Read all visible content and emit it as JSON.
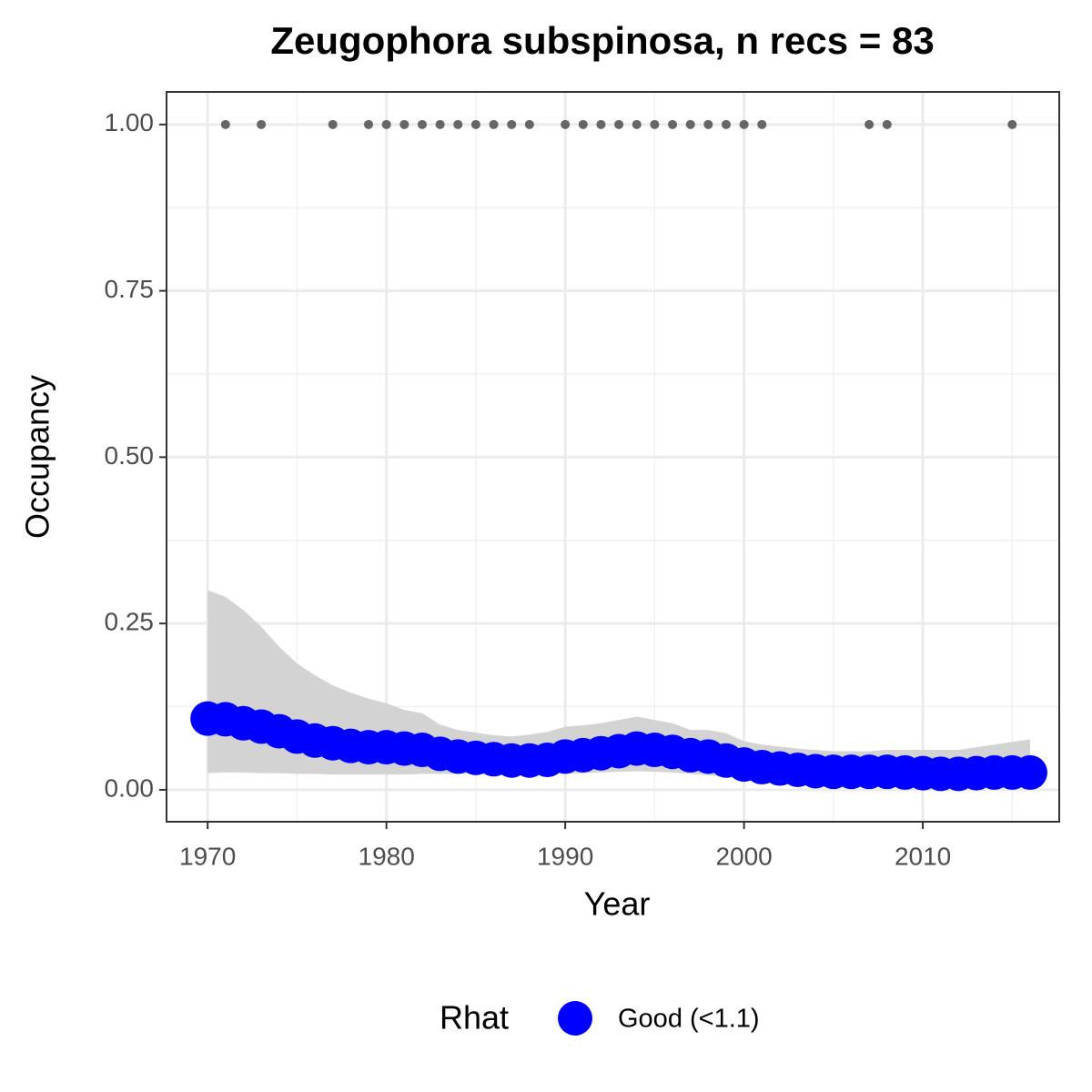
{
  "chart_data": {
    "type": "line",
    "title": "Zeugophora subspinosa, n recs = 83",
    "x_label": "Year",
    "y_label": "Occupancy",
    "legend_title": "Rhat",
    "x": [
      1970,
      1971,
      1972,
      1973,
      1974,
      1975,
      1976,
      1977,
      1978,
      1979,
      1980,
      1981,
      1982,
      1983,
      1984,
      1985,
      1986,
      1987,
      1988,
      1989,
      1990,
      1991,
      1992,
      1993,
      1994,
      1995,
      1996,
      1997,
      1998,
      1999,
      2000,
      2001,
      2002,
      2003,
      2004,
      2005,
      2006,
      2007,
      2008,
      2009,
      2010,
      2011,
      2012,
      2013,
      2014,
      2015,
      2016
    ],
    "series": [
      {
        "name": "Good (<1.1)",
        "color": "#0000ff",
        "ribbon_color": "#d3d3d3",
        "values": [
          0.107,
          0.106,
          0.1,
          0.095,
          0.088,
          0.08,
          0.074,
          0.07,
          0.066,
          0.064,
          0.064,
          0.062,
          0.06,
          0.054,
          0.05,
          0.048,
          0.046,
          0.044,
          0.044,
          0.045,
          0.05,
          0.052,
          0.055,
          0.058,
          0.062,
          0.06,
          0.057,
          0.052,
          0.05,
          0.044,
          0.038,
          0.034,
          0.032,
          0.03,
          0.028,
          0.027,
          0.027,
          0.027,
          0.027,
          0.026,
          0.025,
          0.024,
          0.024,
          0.025,
          0.026,
          0.026,
          0.026
        ],
        "upper": [
          0.3,
          0.29,
          0.27,
          0.245,
          0.215,
          0.19,
          0.172,
          0.157,
          0.146,
          0.137,
          0.13,
          0.12,
          0.115,
          0.098,
          0.09,
          0.086,
          0.082,
          0.08,
          0.083,
          0.087,
          0.095,
          0.097,
          0.1,
          0.105,
          0.11,
          0.105,
          0.1,
          0.09,
          0.09,
          0.085,
          0.073,
          0.068,
          0.065,
          0.062,
          0.06,
          0.058,
          0.058,
          0.058,
          0.06,
          0.06,
          0.06,
          0.06,
          0.06,
          0.064,
          0.068,
          0.072,
          0.076
        ],
        "lower": [
          0.025,
          0.026,
          0.026,
          0.025,
          0.025,
          0.024,
          0.024,
          0.023,
          0.023,
          0.023,
          0.023,
          0.023,
          0.024,
          0.024,
          0.024,
          0.024,
          0.023,
          0.022,
          0.022,
          0.022,
          0.024,
          0.025,
          0.026,
          0.027,
          0.028,
          0.027,
          0.026,
          0.024,
          0.022,
          0.019,
          0.017,
          0.016,
          0.015,
          0.014,
          0.013,
          0.013,
          0.013,
          0.013,
          0.012,
          0.012,
          0.012,
          0.011,
          0.011,
          0.011,
          0.011,
          0.011,
          0.011
        ]
      }
    ],
    "records": {
      "color": "#666666",
      "x": [
        1971,
        1973,
        1977,
        1979,
        1980,
        1981,
        1982,
        1983,
        1984,
        1985,
        1986,
        1987,
        1988,
        1990,
        1991,
        1992,
        1993,
        1994,
        1995,
        1996,
        1997,
        1998,
        1999,
        2000,
        2001,
        2007,
        2008,
        2015
      ],
      "values": [
        1,
        1,
        1,
        1,
        1,
        1,
        1,
        1,
        1,
        1,
        1,
        1,
        1,
        1,
        1,
        1,
        1,
        1,
        1,
        1,
        1,
        1,
        1,
        1,
        1,
        1,
        1,
        1
      ]
    },
    "xlim": [
      1967.7,
      2017.63
    ],
    "ylim": [
      -0.048,
      1.049
    ],
    "xticks": [
      1970,
      1980,
      1990,
      2000,
      2010
    ],
    "yticks": [
      {
        "value": 0,
        "label": "0.00"
      },
      {
        "value": 0.25,
        "label": "0.25"
      },
      {
        "value": 0.5,
        "label": "0.50"
      },
      {
        "value": 0.75,
        "label": "0.75"
      },
      {
        "value": 1,
        "label": "1.00"
      }
    ],
    "grid": true
  }
}
